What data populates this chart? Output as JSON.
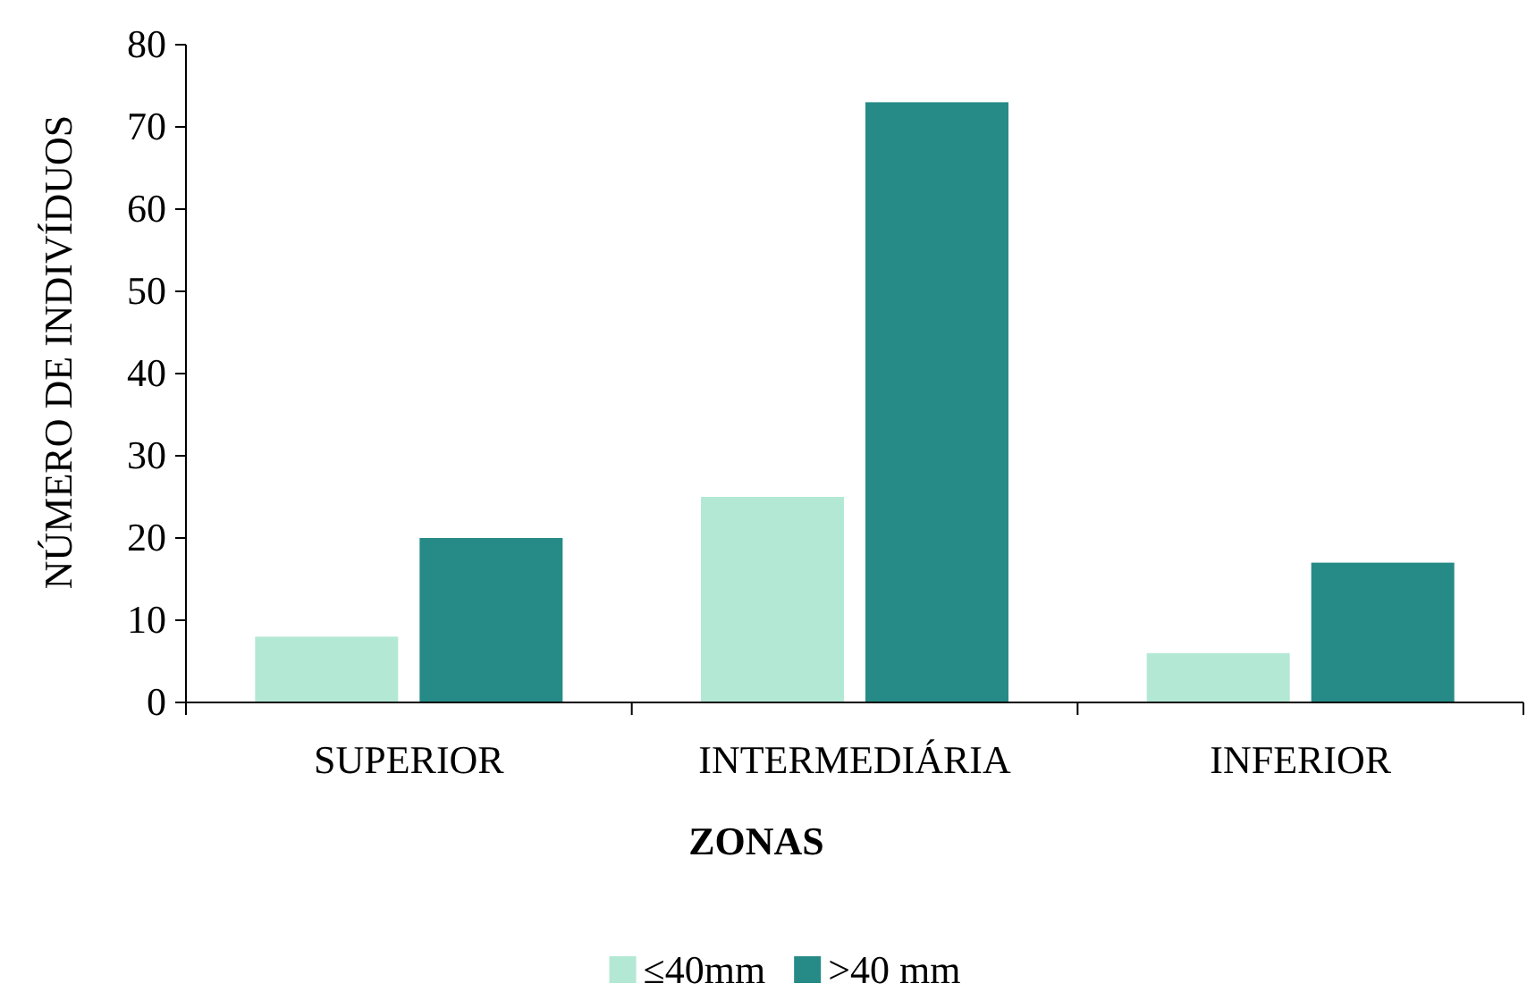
{
  "chart_data": {
    "type": "bar",
    "xlabel": "ZONAS",
    "ylabel": "NÚMERO DE INDIVÍDUOS",
    "categories": [
      "SUPERIOR",
      "INTERMEDIÁRIA",
      "INFERIOR"
    ],
    "series": [
      {
        "name": "≤40mm",
        "color": "#b3e8d4",
        "values": [
          8,
          25,
          6
        ]
      },
      {
        "name": ">40 mm",
        "color": "#268b87",
        "values": [
          20,
          73,
          17
        ]
      }
    ],
    "ylim": [
      0,
      80
    ],
    "yticks": [
      0,
      10,
      20,
      30,
      40,
      50,
      60,
      70,
      80
    ],
    "grid": false,
    "legend": "bottom"
  }
}
